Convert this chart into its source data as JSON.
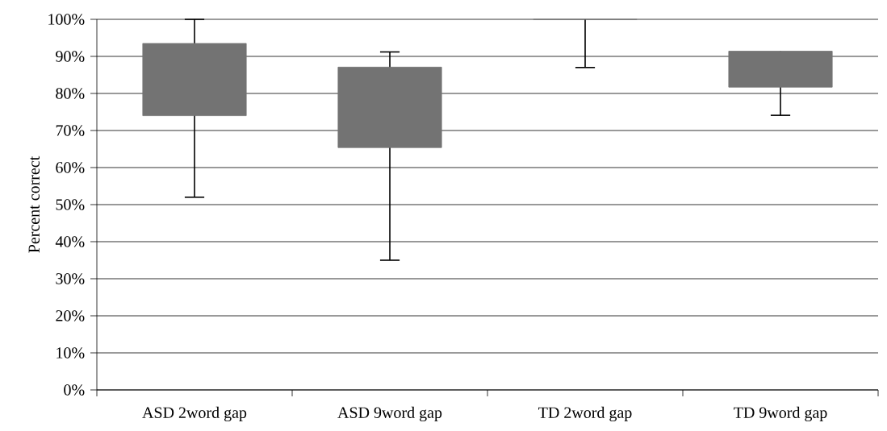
{
  "chart_data": {
    "type": "box",
    "ylabel": "Percent correct",
    "categories": [
      "ASD 2word gap",
      "ASD 9word gap",
      "TD 2word gap",
      "TD 9word gap"
    ],
    "boxes": [
      {
        "low": 52,
        "q1": 74,
        "q3": 93.5,
        "high": 100
      },
      {
        "low": 35,
        "q1": 65.4,
        "q3": 87.1,
        "high": 91.2
      },
      {
        "low": 87,
        "q1": 100,
        "q3": 100,
        "high": 100
      },
      {
        "low": 74.1,
        "q1": 81.7,
        "q3": 91.4,
        "high": 91.4
      }
    ],
    "color": "#737373",
    "ylim": [
      0,
      100
    ],
    "yticks": [
      {
        "value": 0,
        "label": "0%"
      },
      {
        "value": 10,
        "label": "10%"
      },
      {
        "value": 20,
        "label": "20%"
      },
      {
        "value": 30,
        "label": "30%"
      },
      {
        "value": 40,
        "label": "40%"
      },
      {
        "value": 50,
        "label": "50%"
      },
      {
        "value": 60,
        "label": "60%"
      },
      {
        "value": 70,
        "label": "70%"
      },
      {
        "value": 80,
        "label": "80%"
      },
      {
        "value": 90,
        "label": "90%"
      },
      {
        "value": 100,
        "label": "100%"
      }
    ],
    "grid": "y"
  }
}
